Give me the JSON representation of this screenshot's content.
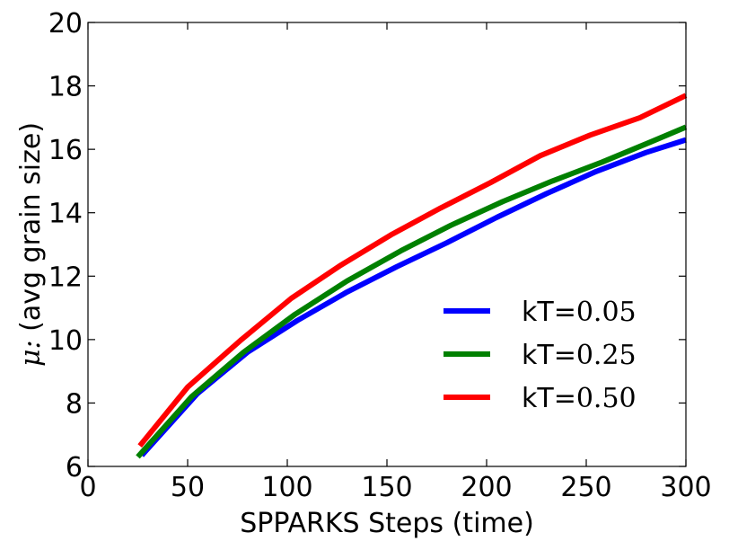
{
  "chart_data": {
    "type": "line",
    "title": "",
    "xlabel": "SPPARKS Steps (time)",
    "ylabel_symbol": "μ:",
    "ylabel_text": "(avg grain size)",
    "xlim": [
      0,
      300
    ],
    "ylim": [
      6,
      20
    ],
    "xticks": [
      0,
      50,
      100,
      150,
      200,
      250,
      300
    ],
    "yticks": [
      6,
      8,
      10,
      12,
      14,
      16,
      18,
      20
    ],
    "grid": false,
    "legend_position": "lower-right",
    "series": [
      {
        "name": "kT=0.05",
        "name_prefix": "kT=",
        "name_value": "0.05",
        "color": "#0000ff",
        "x": [
          27,
          55,
          80,
          105,
          130,
          155,
          180,
          205,
          230,
          255,
          280,
          300
        ],
        "y": [
          6.35,
          8.3,
          9.6,
          10.6,
          11.5,
          12.3,
          13.05,
          13.85,
          14.6,
          15.3,
          15.9,
          16.3
        ]
      },
      {
        "name": "kT=0.25",
        "name_prefix": "kT=",
        "name_value": "0.25",
        "color": "#008000",
        "x": [
          25,
          52,
          78,
          104,
          130,
          157,
          182,
          208,
          233,
          258,
          283,
          300
        ],
        "y": [
          6.3,
          8.2,
          9.6,
          10.8,
          11.85,
          12.8,
          13.6,
          14.35,
          15.0,
          15.6,
          16.25,
          16.7
        ]
      },
      {
        "name": "kT=0.50",
        "name_prefix": "kT=",
        "name_value": "0.50",
        "color": "#ff0000",
        "x": [
          26,
          50,
          77,
          102,
          127,
          152,
          177,
          202,
          227,
          252,
          277,
          300
        ],
        "y": [
          6.65,
          8.5,
          10.0,
          11.3,
          12.35,
          13.3,
          14.15,
          14.95,
          15.8,
          16.45,
          17.0,
          17.7
        ]
      }
    ]
  }
}
